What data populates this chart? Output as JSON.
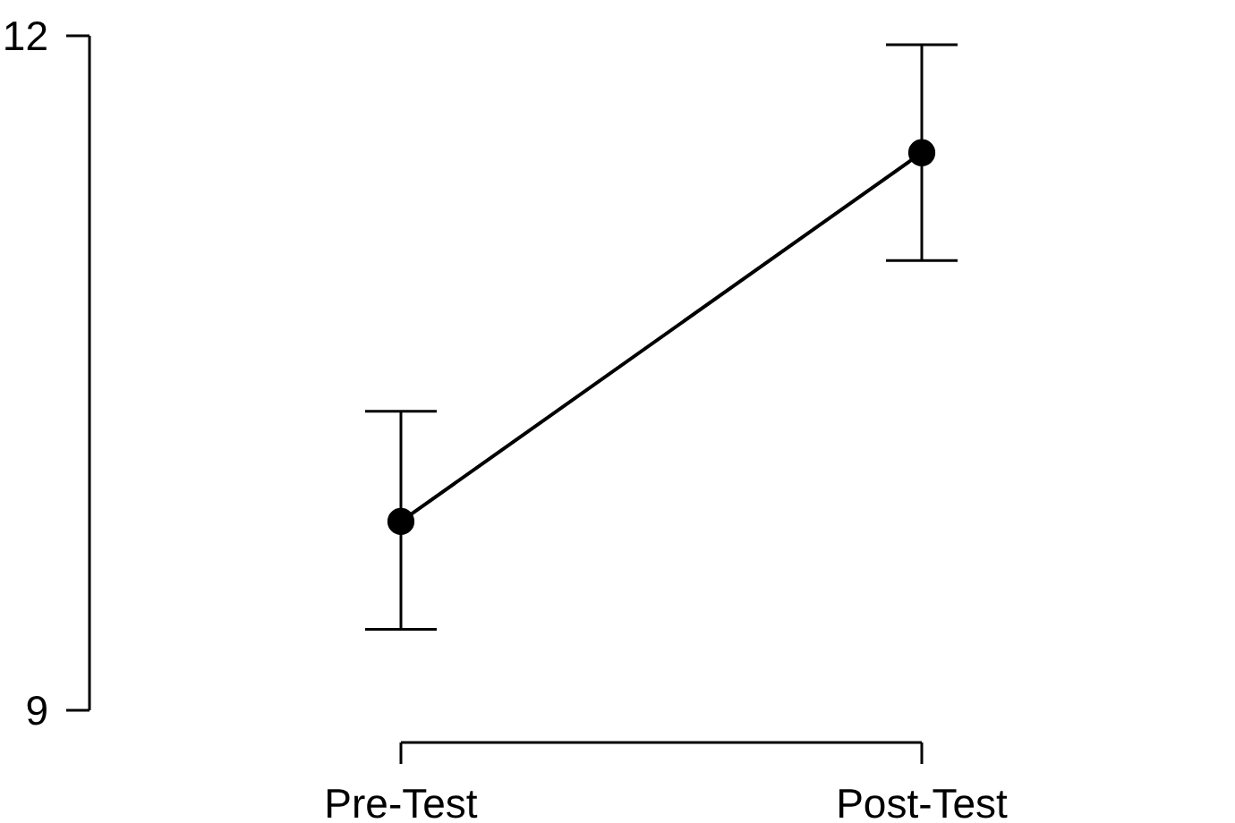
{
  "chart_data": {
    "type": "line",
    "categories": [
      "Pre-Test",
      "Post-Test"
    ],
    "values": [
      9.84,
      11.48
    ],
    "errors": [
      [
        9.36,
        10.33
      ],
      [
        11.0,
        11.96
      ]
    ],
    "color": "#000000",
    "ylim": [
      9,
      12
    ],
    "yticks": [
      9,
      12
    ],
    "marker": "circle",
    "line_style": "solid"
  }
}
